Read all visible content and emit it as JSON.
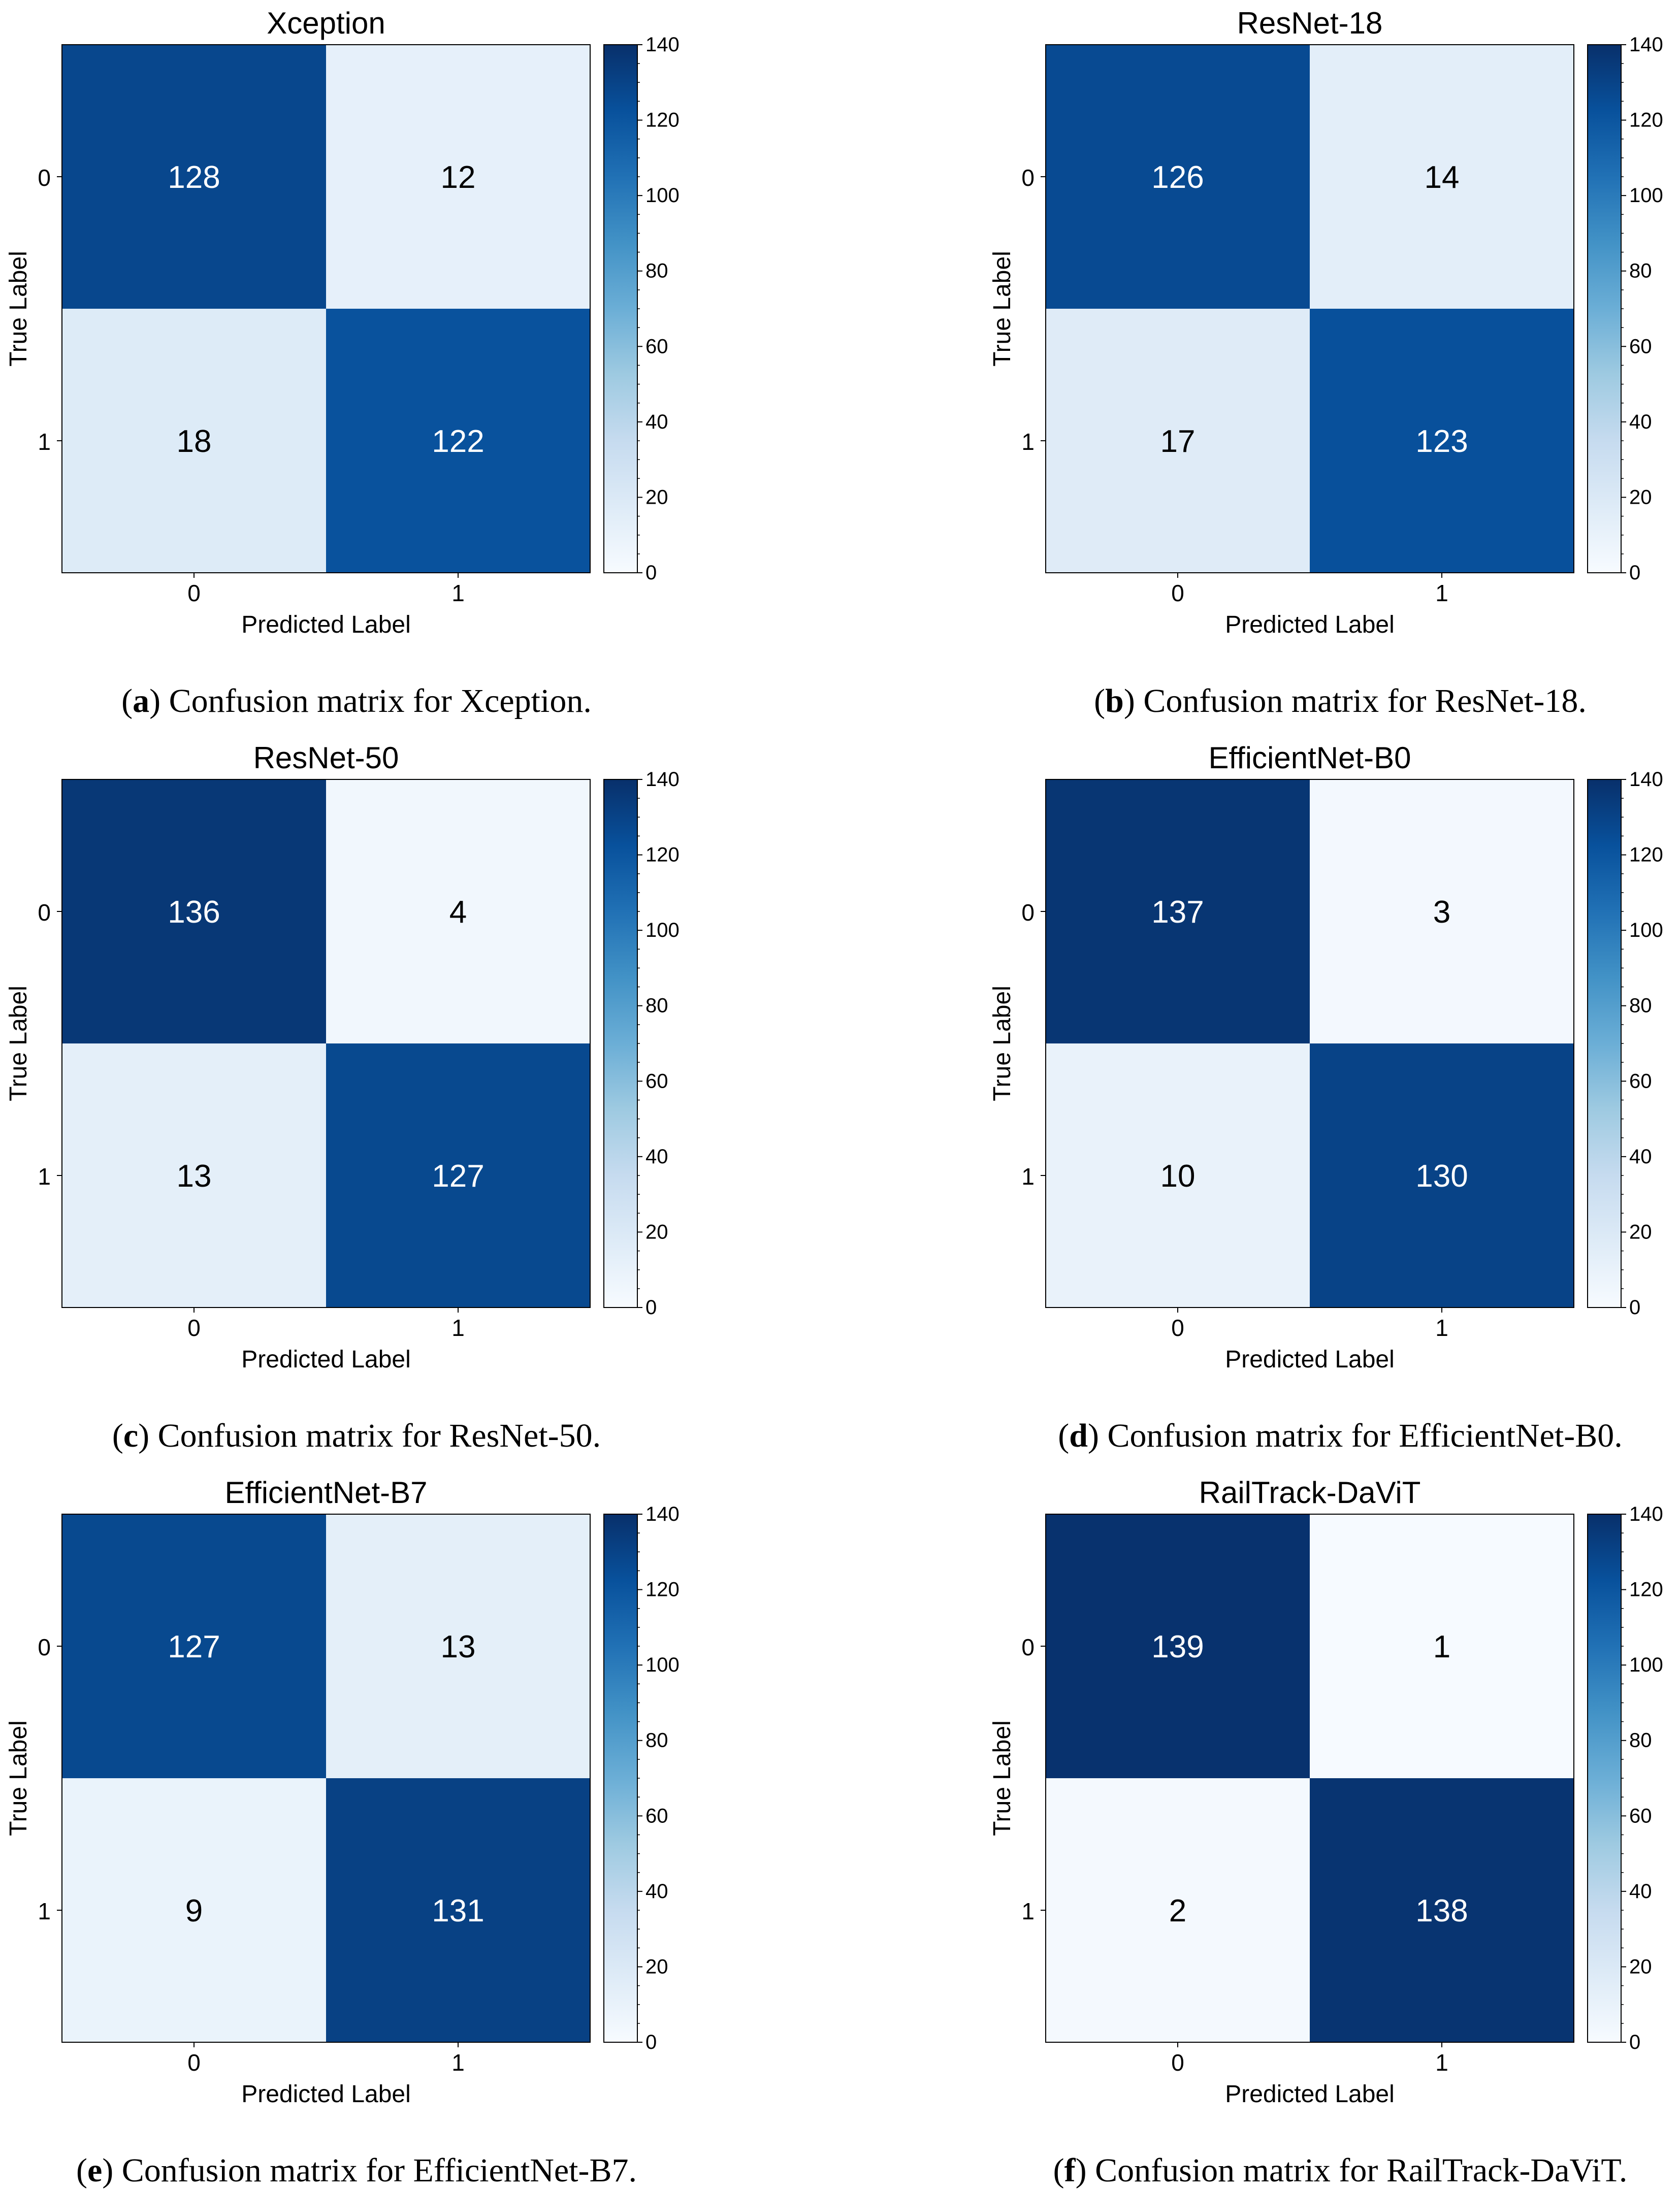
{
  "chart_data": [
    {
      "type": "heatmap",
      "title": "Xception",
      "xlabel": "Predicted Label",
      "ylabel": "True Label",
      "x_categories": [
        "0",
        "1"
      ],
      "y_categories": [
        "0",
        "1"
      ],
      "values": [
        [
          128,
          12
        ],
        [
          18,
          122
        ]
      ],
      "colorbar": {
        "range": [
          0,
          140
        ],
        "ticks": [
          "0",
          "20",
          "40",
          "60",
          "80",
          "100",
          "120",
          "140"
        ],
        "colormap": "Blues"
      },
      "caption": {
        "label": "a",
        "text": " Confusion matrix for Xception."
      }
    },
    {
      "type": "heatmap",
      "title": "ResNet-18",
      "xlabel": "Predicted Label",
      "ylabel": "True Label",
      "x_categories": [
        "0",
        "1"
      ],
      "y_categories": [
        "0",
        "1"
      ],
      "values": [
        [
          126,
          14
        ],
        [
          17,
          123
        ]
      ],
      "colorbar": {
        "range": [
          0,
          140
        ],
        "ticks": [
          "0",
          "20",
          "40",
          "60",
          "80",
          "100",
          "120",
          "140"
        ],
        "colormap": "Blues"
      },
      "caption": {
        "label": "b",
        "text": " Confusion matrix for ResNet-18."
      }
    },
    {
      "type": "heatmap",
      "title": "ResNet-50",
      "xlabel": "Predicted Label",
      "ylabel": "True Label",
      "x_categories": [
        "0",
        "1"
      ],
      "y_categories": [
        "0",
        "1"
      ],
      "values": [
        [
          136,
          4
        ],
        [
          13,
          127
        ]
      ],
      "colorbar": {
        "range": [
          0,
          140
        ],
        "ticks": [
          "0",
          "20",
          "40",
          "60",
          "80",
          "100",
          "120",
          "140"
        ],
        "colormap": "Blues"
      },
      "caption": {
        "label": "c",
        "text": " Confusion matrix for ResNet-50."
      }
    },
    {
      "type": "heatmap",
      "title": "EfficientNet-B0",
      "xlabel": "Predicted Label",
      "ylabel": "True Label",
      "x_categories": [
        "0",
        "1"
      ],
      "y_categories": [
        "0",
        "1"
      ],
      "values": [
        [
          137,
          3
        ],
        [
          10,
          130
        ]
      ],
      "colorbar": {
        "range": [
          0,
          140
        ],
        "ticks": [
          "0",
          "20",
          "40",
          "60",
          "80",
          "100",
          "120",
          "140"
        ],
        "colormap": "Blues"
      },
      "caption": {
        "label": "d",
        "text": " Confusion matrix for EfficientNet-B0."
      }
    },
    {
      "type": "heatmap",
      "title": "EfficientNet-B7",
      "xlabel": "Predicted Label",
      "ylabel": "True Label",
      "x_categories": [
        "0",
        "1"
      ],
      "y_categories": [
        "0",
        "1"
      ],
      "values": [
        [
          127,
          13
        ],
        [
          9,
          131
        ]
      ],
      "colorbar": {
        "range": [
          0,
          140
        ],
        "ticks": [
          "0",
          "20",
          "40",
          "60",
          "80",
          "100",
          "120",
          "140"
        ],
        "colormap": "Blues"
      },
      "caption": {
        "label": "e",
        "text": " Confusion matrix for EfficientNet-B7."
      }
    },
    {
      "type": "heatmap",
      "title": "RailTrack-DaViT",
      "xlabel": "Predicted Label",
      "ylabel": "True Label",
      "x_categories": [
        "0",
        "1"
      ],
      "y_categories": [
        "0",
        "1"
      ],
      "values": [
        [
          139,
          1
        ],
        [
          2,
          138
        ]
      ],
      "colorbar": {
        "range": [
          0,
          140
        ],
        "ticks": [
          "0",
          "20",
          "40",
          "60",
          "80",
          "100",
          "120",
          "140"
        ],
        "colormap": "Blues"
      },
      "caption": {
        "label": "f",
        "text": " Confusion matrix for RailTrack-DaViT."
      }
    }
  ]
}
